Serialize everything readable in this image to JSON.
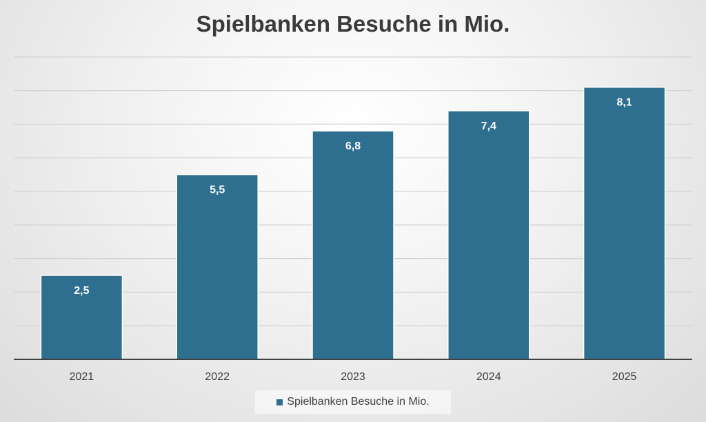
{
  "chart_data": {
    "type": "bar",
    "title": "Spielbanken Besuche in Mio.",
    "categories": [
      "2021",
      "2022",
      "2023",
      "2024",
      "2025"
    ],
    "series": [
      {
        "name": "Spielbanken Besuche in Mio.",
        "values": [
          2.5,
          5.5,
          6.8,
          7.4,
          8.1
        ],
        "labels": [
          "2,5",
          "5,5",
          "6,8",
          "7,4",
          "8,1"
        ]
      }
    ],
    "ylim": [
      0,
      9
    ],
    "grid": true,
    "legend_position": "bottom",
    "colors": {
      "bar": "#2e6e8e",
      "bar_edge": "#ffffff",
      "gridline": "#d4d4d4",
      "axis": "#404040",
      "data_label": "#ffffff",
      "tick_label": "#404040"
    }
  }
}
